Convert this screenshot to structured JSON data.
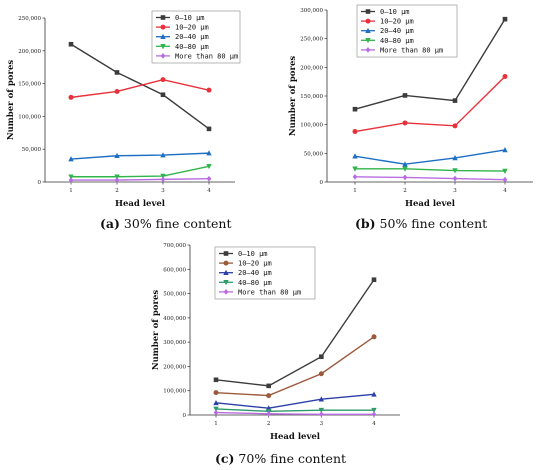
{
  "colors": {
    "series_a": [
      "#3c3c3c",
      "#e8313a",
      "#1e6fc4",
      "#2fb54a",
      "#b96be0"
    ],
    "series_b": [
      "#3c3c3c",
      "#e8313a",
      "#1e6fc4",
      "#2fb54a",
      "#b96be0"
    ],
    "series_c": [
      "#3c3c3c",
      "#9c5a3c",
      "#2c3fa8",
      "#2f9a6a",
      "#b96be0"
    ]
  },
  "markers": [
    "square",
    "circle",
    "triangle-up",
    "triangle-down",
    "diamond"
  ],
  "chart_data": [
    {
      "type": "line",
      "caption_id": "(a)",
      "caption_text": " 30% fine content",
      "xlabel": "Head level",
      "ylabel": "Number of pores",
      "x": [
        1,
        2,
        3,
        4
      ],
      "xticks": [
        "1",
        "2",
        "3",
        "4"
      ],
      "ylim": [
        0,
        250000
      ],
      "yticks": [
        0,
        50000,
        100000,
        150000,
        200000,
        250000
      ],
      "ytick_labels": [
        "0",
        "50,000",
        "100,000",
        "150,000",
        "200,000",
        "250,000"
      ],
      "legend_position": "top-right",
      "series": [
        {
          "name": "0–10 μm",
          "values": [
            210000,
            167000,
            133000,
            81000
          ]
        },
        {
          "name": "10–20 μm",
          "values": [
            129000,
            138000,
            156000,
            140000
          ]
        },
        {
          "name": "20–40 μm",
          "values": [
            35000,
            40000,
            41000,
            44000
          ]
        },
        {
          "name": "40–80 μm",
          "values": [
            8000,
            8000,
            9000,
            24000
          ]
        },
        {
          "name": "More than 80 μm",
          "values": [
            3000,
            3000,
            4000,
            5000
          ]
        }
      ]
    },
    {
      "type": "line",
      "caption_id": "(b)",
      "caption_text": " 50% fine content",
      "xlabel": "Head level",
      "ylabel": "Number of pores",
      "x": [
        1,
        2,
        3,
        4
      ],
      "xticks": [
        "1",
        "2",
        "3",
        "4"
      ],
      "ylim": [
        0,
        300000
      ],
      "yticks": [
        0,
        50000,
        100000,
        150000,
        200000,
        250000,
        300000
      ],
      "ytick_labels": [
        "0",
        "50,000",
        "100,000",
        "150,000",
        "200,000",
        "250,000",
        "300,000"
      ],
      "legend_position": "top-left",
      "series": [
        {
          "name": "0–10 μm",
          "values": [
            127000,
            151000,
            142000,
            284000
          ]
        },
        {
          "name": "10–20 μm",
          "values": [
            88000,
            103000,
            98000,
            184000
          ]
        },
        {
          "name": "20–40 μm",
          "values": [
            45000,
            31000,
            42000,
            56000
          ]
        },
        {
          "name": "40–80 μm",
          "values": [
            23000,
            23000,
            20000,
            19000
          ]
        },
        {
          "name": "More than 80 μm",
          "values": [
            9000,
            8000,
            6000,
            4000
          ]
        }
      ]
    },
    {
      "type": "line",
      "caption_id": "(c)",
      "caption_text": " 70% fine content",
      "xlabel": "Head level",
      "ylabel": "Number of pores",
      "x": [
        1,
        2,
        3,
        4
      ],
      "xticks": [
        "1",
        "2",
        "3",
        "4"
      ],
      "ylim": [
        0,
        700000
      ],
      "yticks": [
        0,
        100000,
        200000,
        300000,
        400000,
        500000,
        600000,
        700000
      ],
      "ytick_labels": [
        "0",
        "100,000",
        "200,000",
        "300,000",
        "400,000",
        "500,000",
        "600,000",
        "700,000"
      ],
      "legend_position": "top-left",
      "series": [
        {
          "name": "0–10 μm",
          "values": [
            145000,
            120000,
            240000,
            557000
          ]
        },
        {
          "name": "10–20 μm",
          "values": [
            92000,
            80000,
            170000,
            322000
          ]
        },
        {
          "name": "20–40 μm",
          "values": [
            50000,
            28000,
            65000,
            85000
          ]
        },
        {
          "name": "40–80 μm",
          "values": [
            25000,
            15000,
            20000,
            20000
          ]
        },
        {
          "name": "More than 80 μm",
          "values": [
            10000,
            5000,
            3000,
            3000
          ]
        }
      ]
    }
  ]
}
